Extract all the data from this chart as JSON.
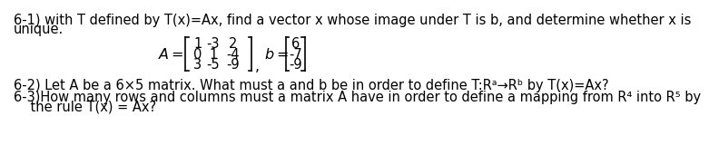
{
  "bg_color": "#ffffff",
  "text_color": "#000000",
  "line1": "6-1) with T defined by T(x)=Ax, find a vector x whose image under T is b, and determine whether x is",
  "line2": "unique.",
  "matrix_A_rows": [
    [
      "1",
      "-3",
      "2"
    ],
    [
      "0",
      "1",
      "-4"
    ],
    [
      "3",
      "-5",
      "-9"
    ]
  ],
  "vector_b_vals": [
    "6",
    "-7",
    "-9"
  ],
  "line_62": "6-2) Let A be a 6×5 matrix. What must a and b be in order to define T:Rᵃ→Rᵇ by T(x)=Ax?",
  "line_63a": "6-3)How many rows and columns must a matrix A have in order to define a mapping from R⁴ into R⁵ by",
  "line_63b": "    the rule T(x) = Ax?",
  "fontsize": 10.5,
  "fontfamily": "DejaVu Sans"
}
